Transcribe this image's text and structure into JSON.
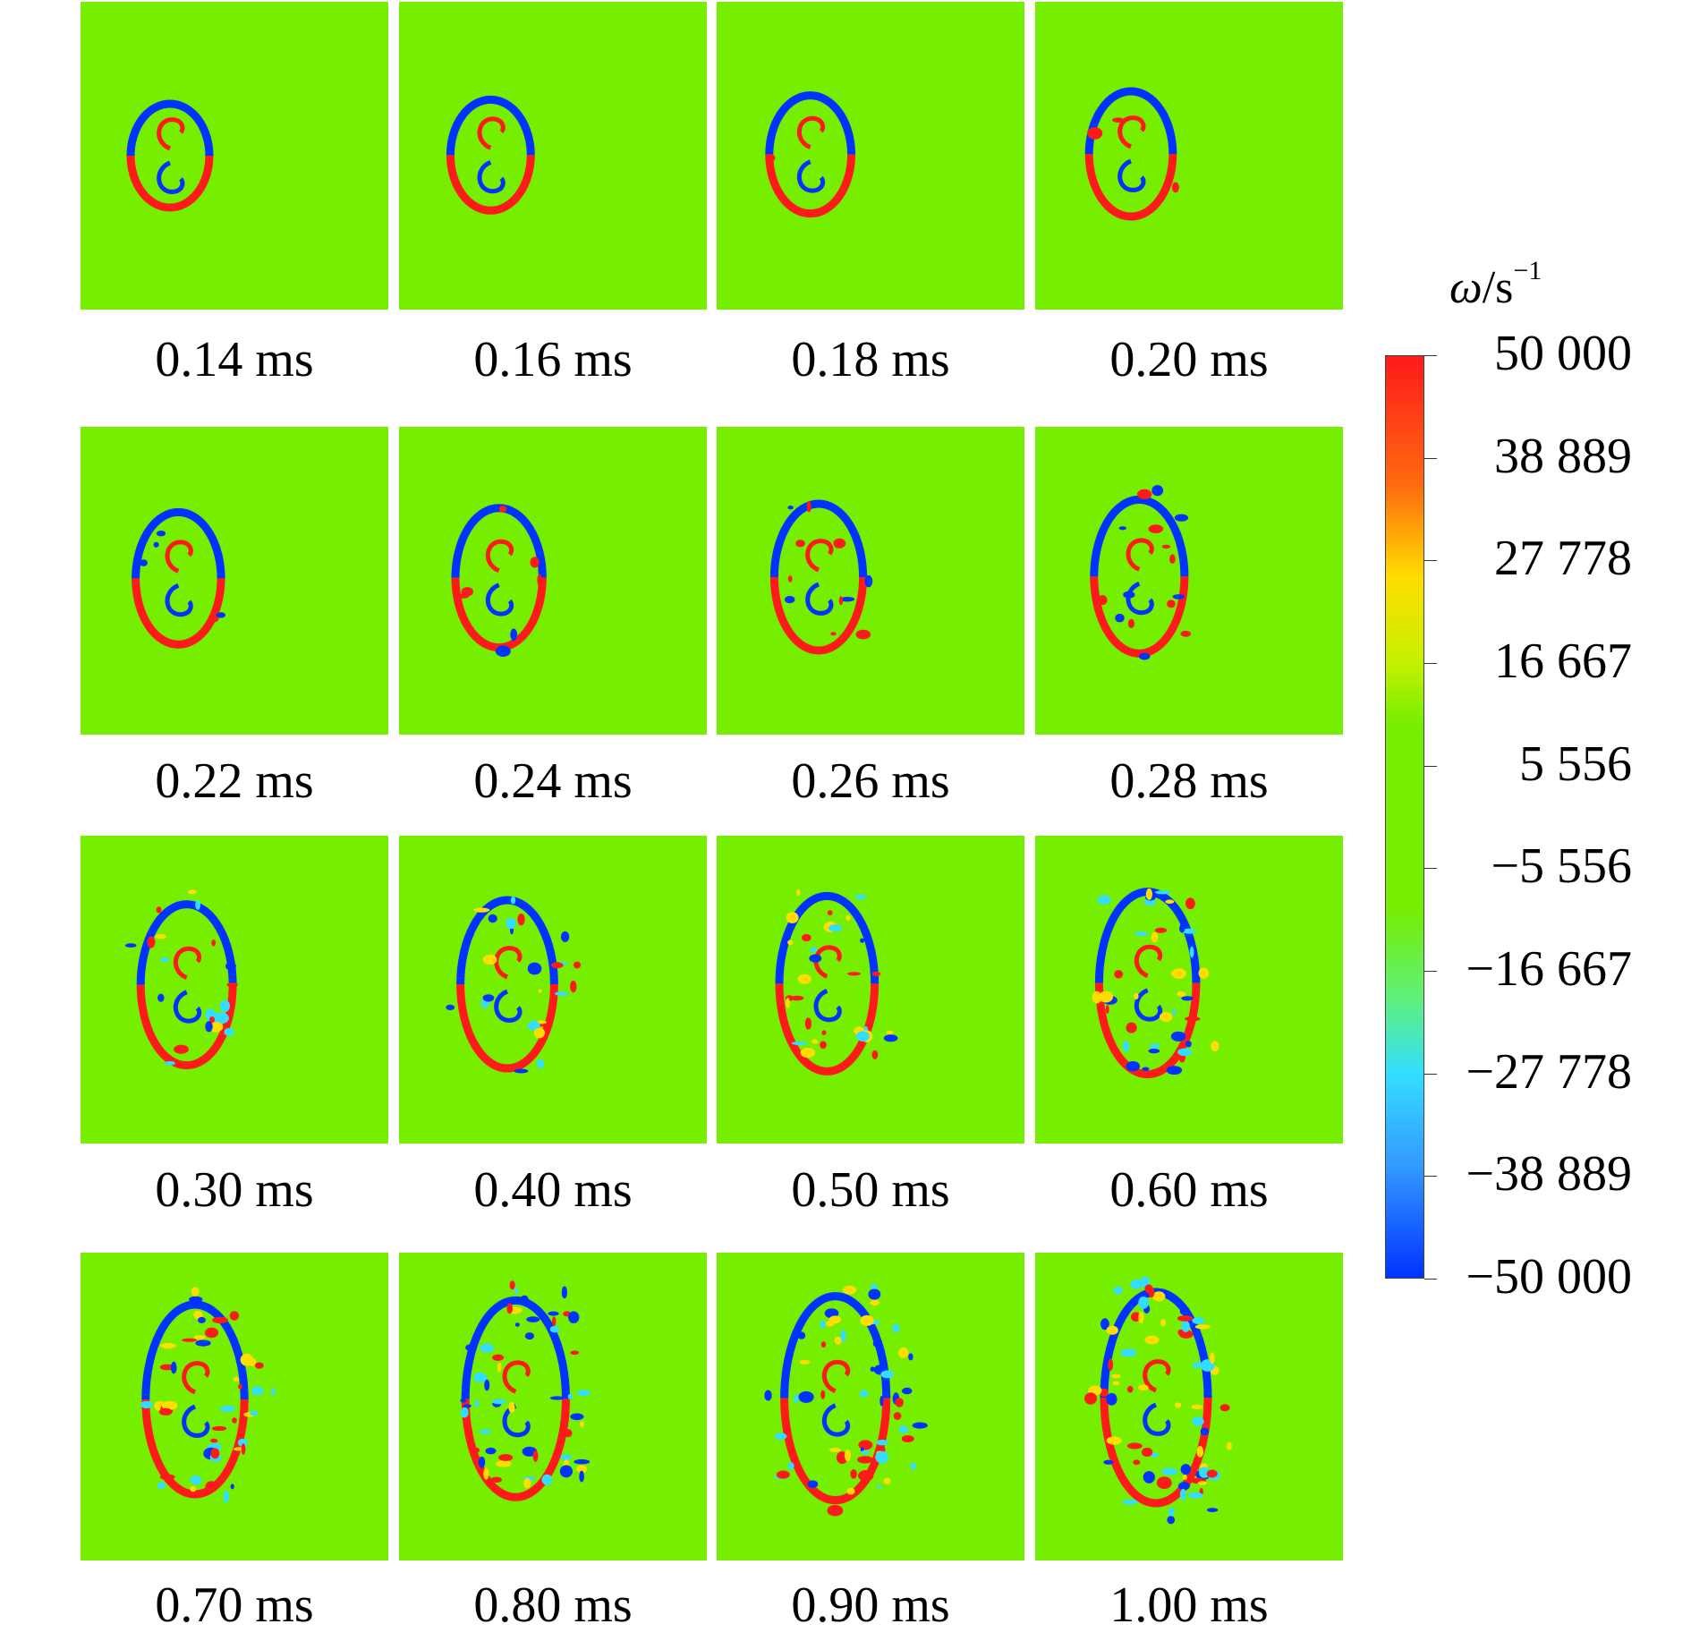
{
  "panels": [
    {
      "time": "0.14 ms"
    },
    {
      "time": "0.16 ms"
    },
    {
      "time": "0.18 ms"
    },
    {
      "time": "0.20 ms"
    },
    {
      "time": "0.22 ms"
    },
    {
      "time": "0.24 ms"
    },
    {
      "time": "0.26 ms"
    },
    {
      "time": "0.28 ms"
    },
    {
      "time": "0.30 ms"
    },
    {
      "time": "0.40 ms"
    },
    {
      "time": "0.50 ms"
    },
    {
      "time": "0.60 ms"
    },
    {
      "time": "0.70 ms"
    },
    {
      "time": "0.80 ms"
    },
    {
      "time": "0.90 ms"
    },
    {
      "time": "1.00 ms"
    }
  ],
  "colorbar": {
    "symbol": "ω",
    "unit": "/s",
    "exponent": "−1",
    "ticks": [
      "50 000",
      "38 889",
      "27 778",
      "16 667",
      "5 556",
      "−5 556",
      "−16 667",
      "−27 778",
      "−38 889",
      "−50 000"
    ],
    "colors": {
      "top": "#ff1a1a",
      "upper": "#ffdd00",
      "middle": "#76ee00",
      "lower": "#33ddff",
      "bottom": "#0033ff"
    }
  }
}
